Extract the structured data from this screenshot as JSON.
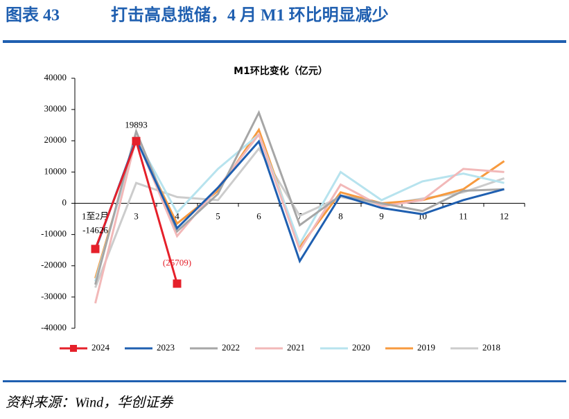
{
  "header": {
    "label": "图表 43",
    "title": "打击高息揽储，4 月 M1 环比明显减少"
  },
  "source": "资料来源：Wind，华创证券",
  "chart_data": {
    "type": "line",
    "title": "M1环比变化（亿元）",
    "categories": [
      "1至2月",
      "3",
      "4",
      "5",
      "6",
      "7",
      "8",
      "9",
      "10",
      "11",
      "12"
    ],
    "ylim": [
      -40000,
      40000
    ],
    "yticks": [
      -40000,
      -30000,
      -20000,
      -10000,
      0,
      10000,
      20000,
      30000,
      40000
    ],
    "legend": "bottom",
    "series": [
      {
        "name": "2024",
        "color": "#e5202a",
        "marker": "square",
        "values": [
          -14626,
          19893,
          -25709,
          null,
          null,
          null,
          null,
          null,
          null,
          null,
          null
        ],
        "value_labels": [
          "-14626",
          "19893",
          "(25709)",
          null,
          null,
          null,
          null,
          null,
          null,
          null,
          null
        ]
      },
      {
        "name": "2023",
        "color": "#1f5fb0",
        "values": [
          -15000,
          20500,
          -8000,
          5000,
          19800,
          -18500,
          2500,
          -1500,
          -3500,
          1000,
          4500
        ]
      },
      {
        "name": "2022",
        "color": "#a6a6a6",
        "values": [
          -26000,
          23000,
          -9000,
          3000,
          29000,
          -7000,
          2500,
          0,
          -2500,
          4000,
          4500
        ]
      },
      {
        "name": "2021",
        "color": "#f2b8b8",
        "values": [
          -32000,
          21000,
          -10500,
          5000,
          22000,
          -15000,
          6000,
          -1000,
          1000,
          11000,
          10000
        ]
      },
      {
        "name": "2020",
        "color": "#b7e3ee",
        "values": [
          -25000,
          21000,
          -3000,
          11000,
          22000,
          -13000,
          10000,
          1000,
          7000,
          9500,
          6500
        ]
      },
      {
        "name": "2019",
        "color": "#f79a3e",
        "values": [
          -24000,
          20500,
          -6500,
          4000,
          23500,
          -14000,
          3500,
          0,
          1000,
          4500,
          13500
        ]
      },
      {
        "name": "2018",
        "color": "#cccccc",
        "values": [
          -27000,
          6500,
          2000,
          1000,
          17500,
          -4000,
          2000,
          -500,
          1500,
          3500,
          8000
        ]
      }
    ]
  }
}
